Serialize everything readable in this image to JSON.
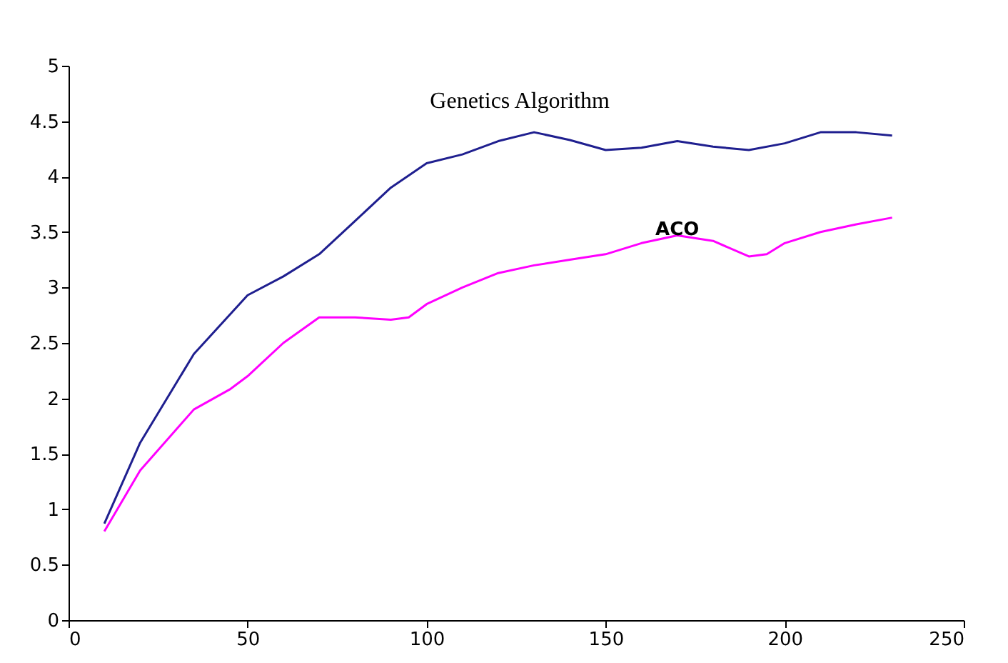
{
  "chart_data": {
    "type": "line",
    "xlim": [
      0,
      250
    ],
    "xticks": [
      0,
      50,
      100,
      150,
      200,
      250
    ],
    "ylim": [
      0,
      5
    ],
    "yticks": [
      0,
      0.5,
      1,
      1.5,
      2,
      2.5,
      3,
      3.5,
      4,
      4.5,
      5
    ],
    "grid": false,
    "legend": false,
    "marker": "none",
    "line_style": "solid",
    "series": [
      {
        "name": "Genetics Algorithm",
        "color": "#1f1f8f",
        "x": [
          10,
          20,
          35,
          50,
          60,
          70,
          80,
          90,
          100,
          110,
          120,
          130,
          140,
          150,
          160,
          170,
          180,
          190,
          200,
          210,
          220,
          230
        ],
        "values": [
          0.87,
          1.6,
          2.4,
          2.93,
          3.1,
          3.3,
          3.6,
          3.9,
          4.12,
          4.2,
          4.32,
          4.4,
          4.33,
          4.24,
          4.26,
          4.32,
          4.27,
          4.24,
          4.3,
          4.4,
          4.4,
          4.37
        ]
      },
      {
        "name": "ACO",
        "color": "#ff00ff",
        "x": [
          10,
          20,
          35,
          45,
          50,
          60,
          70,
          80,
          90,
          95,
          100,
          110,
          120,
          130,
          140,
          150,
          160,
          170,
          180,
          190,
          195,
          200,
          210,
          220,
          230
        ],
        "values": [
          0.8,
          1.35,
          1.9,
          2.08,
          2.2,
          2.5,
          2.73,
          2.73,
          2.71,
          2.73,
          2.85,
          3.0,
          3.13,
          3.2,
          3.25,
          3.3,
          3.4,
          3.47,
          3.42,
          3.28,
          3.3,
          3.4,
          3.5,
          3.57,
          3.63
        ]
      }
    ]
  }
}
